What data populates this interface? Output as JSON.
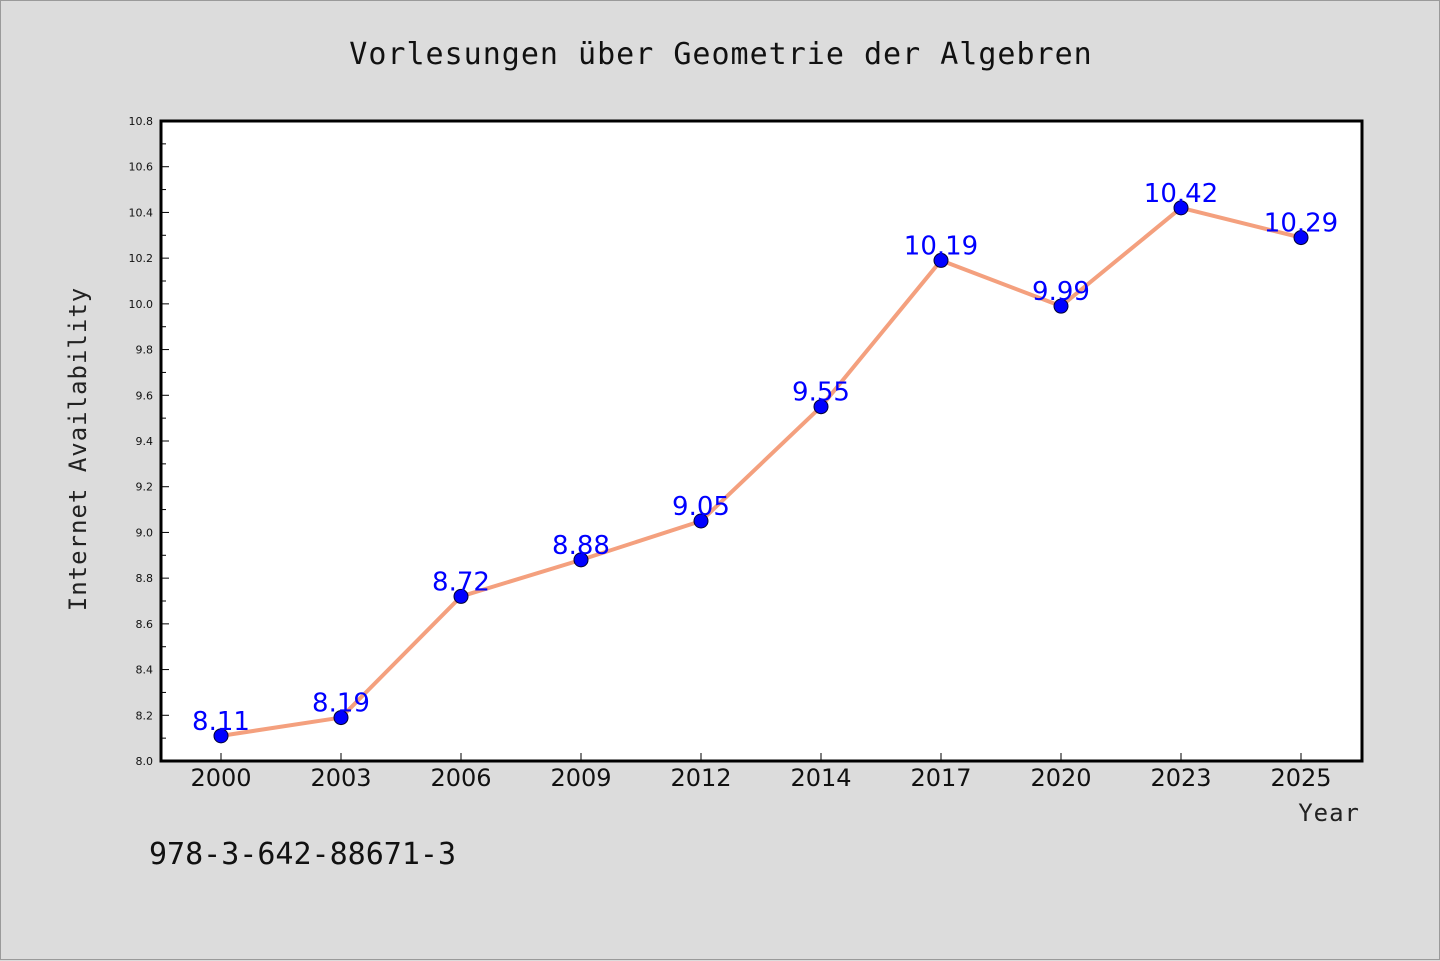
{
  "chart_data": {
    "type": "line",
    "title": "Vorlesungen über Geometrie der Algebren",
    "xlabel": "Year",
    "ylabel": "Internet Availability",
    "categories": [
      "2000",
      "2003",
      "2006",
      "2009",
      "2012",
      "2014",
      "2017",
      "2020",
      "2023",
      "2025"
    ],
    "values": [
      8.11,
      8.19,
      8.72,
      8.88,
      9.05,
      9.55,
      10.19,
      9.99,
      10.42,
      10.29
    ],
    "data_labels": [
      "8.11",
      "8.19",
      "8.72",
      "8.88",
      "9.05",
      "9.55",
      "10.19",
      "9.99",
      "10.42",
      "10.29"
    ],
    "ylim": [
      8.0,
      10.8
    ],
    "yticks": [
      "8.0",
      "8.2",
      "8.4",
      "8.6",
      "8.8",
      "9.0",
      "9.2",
      "9.4",
      "9.6",
      "9.8",
      "10.0",
      "10.2",
      "10.4",
      "10.6",
      "10.8"
    ],
    "grid": false,
    "line_color": "#f4a07e",
    "marker_color": "#0000ff",
    "label_color": "#0000ff",
    "plot_background": "#ffffff",
    "page_background": "#dcdcdc"
  },
  "footer_text": "978-3-642-88671-3"
}
